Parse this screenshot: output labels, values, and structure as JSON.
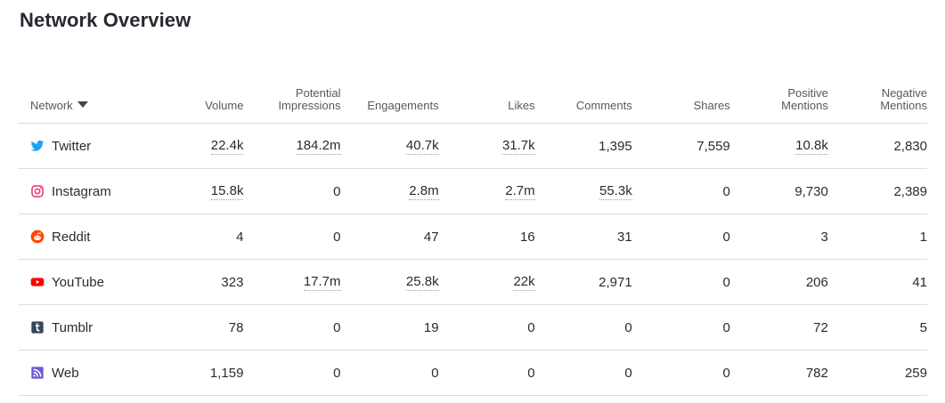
{
  "page": {
    "title": "Network Overview"
  },
  "table": {
    "headers": {
      "network": "Network",
      "volume": "Volume",
      "impressions_line1": "Potential",
      "impressions_line2": "Impressions",
      "engagements": "Engagements",
      "likes": "Likes",
      "comments": "Comments",
      "shares": "Shares",
      "positive_line1": "Positive",
      "positive_line2": "Mentions",
      "negative_line1": "Negative",
      "negative_line2": "Mentions"
    },
    "rows": [
      {
        "icon": "twitter-icon",
        "name": "Twitter",
        "volume": "22.4k",
        "impressions": "184.2m",
        "engagements": "40.7k",
        "likes": "31.7k",
        "comments": "1,395",
        "shares": "7,559",
        "positive": "10.8k",
        "negative": "2,830"
      },
      {
        "icon": "instagram-icon",
        "name": "Instagram",
        "volume": "15.8k",
        "impressions": "0",
        "engagements": "2.8m",
        "likes": "2.7m",
        "comments": "55.3k",
        "shares": "0",
        "positive": "9,730",
        "negative": "2,389"
      },
      {
        "icon": "reddit-icon",
        "name": "Reddit",
        "volume": "4",
        "impressions": "0",
        "engagements": "47",
        "likes": "16",
        "comments": "31",
        "shares": "0",
        "positive": "3",
        "negative": "1"
      },
      {
        "icon": "youtube-icon",
        "name": "YouTube",
        "volume": "323",
        "impressions": "17.7m",
        "engagements": "25.8k",
        "likes": "22k",
        "comments": "2,971",
        "shares": "0",
        "positive": "206",
        "negative": "41"
      },
      {
        "icon": "tumblr-icon",
        "name": "Tumblr",
        "volume": "78",
        "impressions": "0",
        "engagements": "19",
        "likes": "0",
        "comments": "0",
        "shares": "0",
        "positive": "72",
        "negative": "5"
      },
      {
        "icon": "rss-icon",
        "name": "Web",
        "volume": "1,159",
        "impressions": "0",
        "engagements": "0",
        "likes": "0",
        "comments": "0",
        "shares": "0",
        "positive": "782",
        "negative": "259"
      }
    ]
  },
  "colors": {
    "twitter": "#1da1f2",
    "instagram": "#e1306c",
    "reddit": "#ff4500",
    "youtube": "#ff0000",
    "tumblr": "#35465c",
    "rss": "#6b5bd6"
  }
}
